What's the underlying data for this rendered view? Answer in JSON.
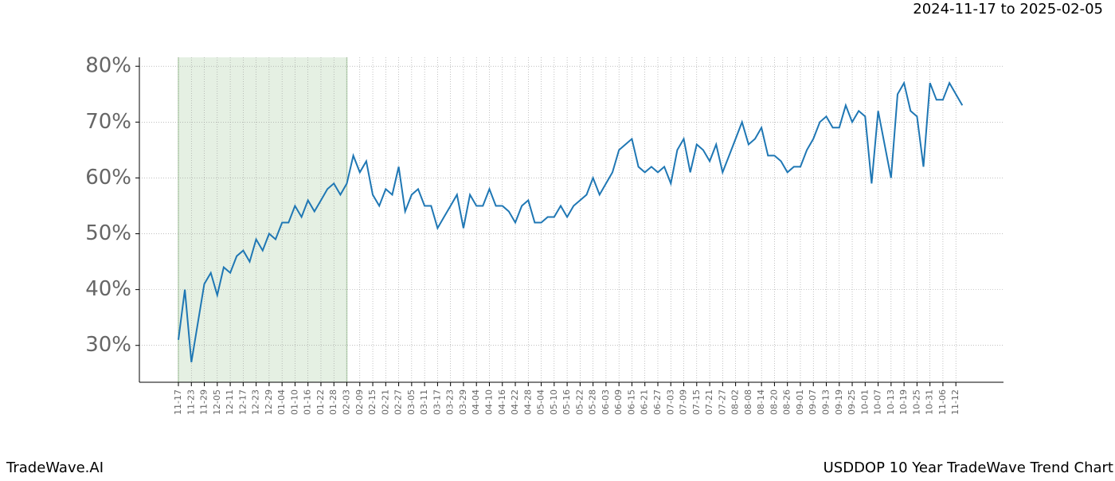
{
  "header": {
    "date_range": "2024-11-17 to 2025-02-05"
  },
  "footer": {
    "brand": "TradeWave.AI",
    "title": "USDDOP 10 Year TradeWave Trend Chart"
  },
  "chart_data": {
    "type": "line",
    "categories": [
      "11-17",
      null,
      "11-23",
      null,
      "11-29",
      null,
      "12-05",
      null,
      "12-11",
      null,
      "12-17",
      null,
      "12-23",
      null,
      "12-29",
      null,
      "01-04",
      null,
      "01-10",
      null,
      "01-16",
      null,
      "01-22",
      null,
      "01-28",
      null,
      "02-03",
      null,
      "02-09",
      null,
      "02-15",
      null,
      "02-21",
      null,
      "02-27",
      null,
      "03-05",
      null,
      "03-11",
      null,
      "03-17",
      null,
      "03-23",
      null,
      "03-29",
      null,
      "04-04",
      null,
      "04-10",
      null,
      "04-16",
      null,
      "04-22",
      null,
      "04-28",
      null,
      "05-04",
      null,
      "05-10",
      null,
      "05-16",
      null,
      "05-22",
      null,
      "05-28",
      null,
      "06-03",
      null,
      "06-09",
      null,
      "06-15",
      null,
      "06-21",
      null,
      "06-27",
      null,
      "07-03",
      null,
      "07-09",
      null,
      "07-15",
      null,
      "07-21",
      null,
      "07-27",
      null,
      "08-02",
      null,
      "08-08",
      null,
      "08-14",
      null,
      "08-20",
      null,
      "08-26",
      null,
      "09-01",
      null,
      "09-07",
      null,
      "09-13",
      null,
      "09-19",
      null,
      "09-25",
      null,
      "10-01",
      null,
      "10-07",
      null,
      "10-13",
      null,
      "10-19",
      null,
      "10-25",
      null,
      "10-31",
      null,
      "11-06",
      null,
      "11-12",
      null
    ],
    "values": [
      31,
      40,
      27,
      34,
      41,
      43,
      39,
      44,
      43,
      46,
      47,
      45,
      49,
      47,
      50,
      49,
      52,
      52,
      55,
      53,
      56,
      54,
      56,
      58,
      59,
      57,
      59,
      64,
      61,
      63,
      57,
      55,
      58,
      57,
      62,
      54,
      57,
      58,
      55,
      55,
      51,
      53,
      55,
      57,
      51,
      57,
      55,
      55,
      58,
      55,
      55,
      54,
      52,
      55,
      56,
      52,
      52,
      53,
      53,
      55,
      53,
      55,
      56,
      57,
      60,
      57,
      59,
      61,
      65,
      66,
      67,
      62,
      61,
      62,
      61,
      62,
      59,
      65,
      67,
      61,
      66,
      65,
      63,
      66,
      61,
      64,
      67,
      70,
      66,
      67,
      69,
      64,
      64,
      63,
      61,
      62,
      62,
      65,
      67,
      70,
      71,
      69,
      69,
      73,
      70,
      72,
      71,
      59,
      72,
      66,
      60,
      75,
      77,
      72,
      71,
      62,
      77,
      74,
      74,
      77,
      75,
      73
    ],
    "color": "#1f77b4",
    "ylim": [
      23.4,
      81.6
    ],
    "yticks": [
      {
        "value": 30,
        "label": "30%"
      },
      {
        "value": 40,
        "label": "40%"
      },
      {
        "value": 50,
        "label": "50%"
      },
      {
        "value": 60,
        "label": "60%"
      },
      {
        "value": 70,
        "label": "70%"
      },
      {
        "value": 80,
        "label": "80%"
      }
    ],
    "grid": true,
    "shaded_span": {
      "start": "11-17",
      "end": "02-03",
      "color": "#e5f0e3"
    }
  }
}
